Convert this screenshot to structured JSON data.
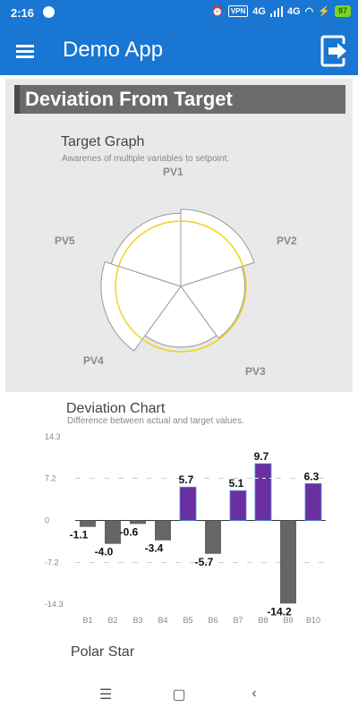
{
  "status_bar": {
    "time": "2:16",
    "vpn": "VPN",
    "net1": "4G",
    "net2": "4G",
    "battery": "97"
  },
  "app_bar": {
    "title": "Demo App",
    "menu_icon": "hamburger-menu-icon",
    "action_icon": "logout-icon"
  },
  "header": {
    "title": "Deviation From Target"
  },
  "target_graph": {
    "title": "Target Graph",
    "subtitle": "Awarenes of multiple variables to setpoint.",
    "labels": [
      "PV1",
      "PV2",
      "PV3",
      "PV4",
      "PV5"
    ],
    "values": [
      1.18,
      0.98,
      0.93,
      1.22,
      1.12
    ],
    "setpoint": 1.0,
    "setpoint_color": "#f2d21b"
  },
  "deviation_chart": {
    "title": "Deviation Chart",
    "subtitle": "Difference between actual and target values."
  },
  "polar_star": {
    "title": "Polar Star"
  },
  "chart_data": {
    "type": "bar",
    "categories": [
      "B1",
      "B2",
      "B3",
      "B4",
      "B5",
      "B6",
      "B7",
      "B8",
      "B9",
      "B10"
    ],
    "values": [
      -1.1,
      -4.0,
      -0.6,
      -3.4,
      5.7,
      -5.7,
      5.1,
      9.7,
      -14.2,
      6.3
    ],
    "y_ticks": [
      14.3,
      7.2,
      0,
      -7.2,
      -14.3
    ],
    "ylim": [
      -14.3,
      14.3
    ],
    "positive_color": "#6a2fa0",
    "negative_color": "#666666"
  },
  "nav": {
    "recent_icon": "recent-apps-icon",
    "home_icon": "home-icon",
    "back_icon": "back-icon"
  }
}
